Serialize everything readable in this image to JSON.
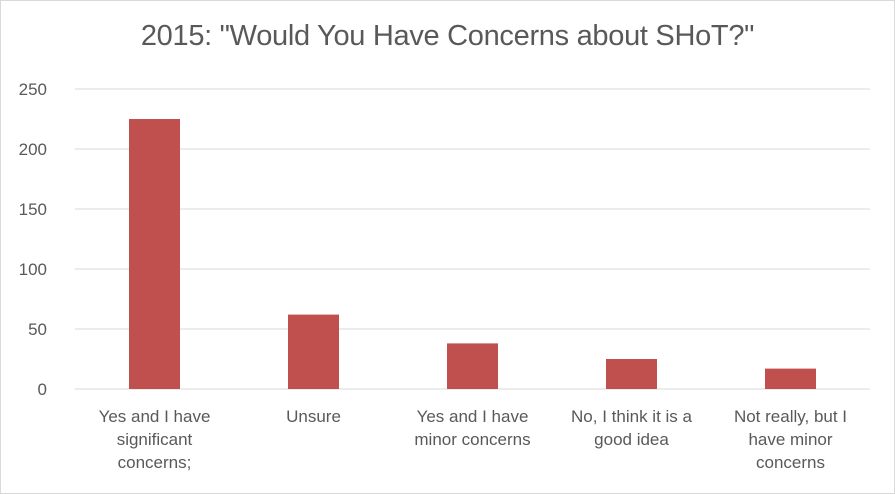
{
  "chart_data": {
    "type": "bar",
    "title": "2015: \"Would You Have Concerns about SHoT?\"",
    "categories": [
      [
        "Yes and I have",
        "significant",
        "concerns;"
      ],
      [
        "Unsure"
      ],
      [
        "Yes and I have",
        "minor concerns"
      ],
      [
        "No, I think it is a",
        "good idea"
      ],
      [
        "Not really, but I",
        "have minor",
        "concerns"
      ]
    ],
    "values": [
      225,
      62,
      38,
      25,
      17
    ],
    "ylim": [
      0,
      250
    ],
    "yticks": [
      "0",
      "50",
      "100",
      "150",
      "200",
      "250"
    ],
    "grid": true,
    "legend": "none",
    "bar_color": "#c0504d",
    "grid_color": "#d9d9d9",
    "text_color": "#595959"
  }
}
